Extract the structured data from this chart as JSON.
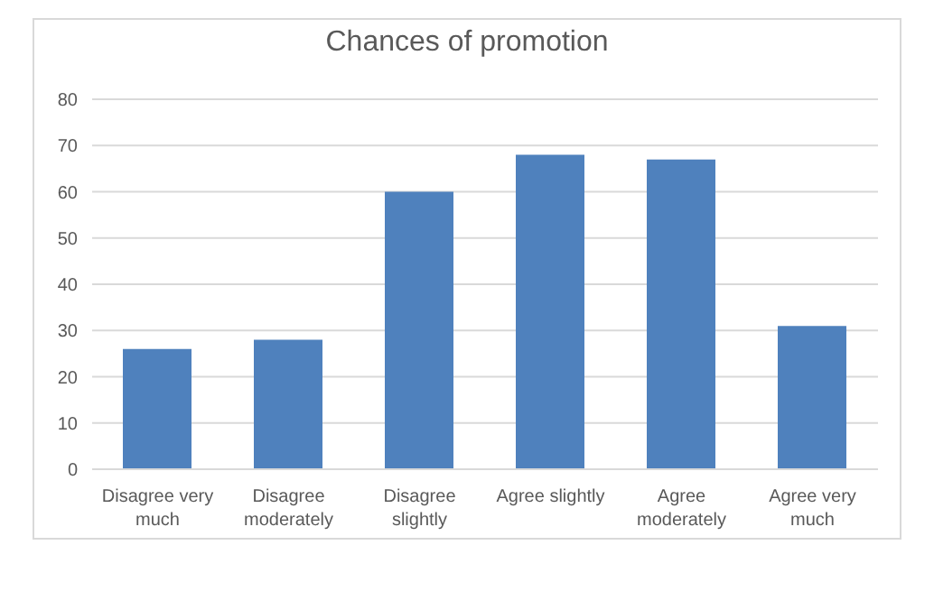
{
  "chart_data": {
    "type": "bar",
    "title": "Chances of promotion",
    "categories": [
      "Disagree very much",
      "Disagree moderately",
      "Disagree slightly",
      "Agree slightly",
      "Agree moderately",
      "Agree very much"
    ],
    "values": [
      26,
      28,
      60,
      68,
      67,
      31
    ],
    "color": "#4f81bd",
    "ylim": [
      0,
      80
    ],
    "yticks": [
      0,
      10,
      20,
      30,
      40,
      50,
      60,
      70,
      80
    ],
    "grid": "y"
  }
}
